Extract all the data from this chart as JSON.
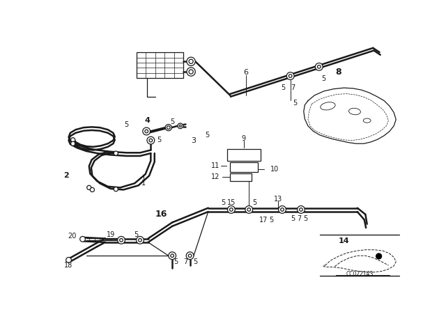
{
  "background_color": "#ffffff",
  "line_color": "#1a1a1a",
  "diagram_code": "CC022143"
}
